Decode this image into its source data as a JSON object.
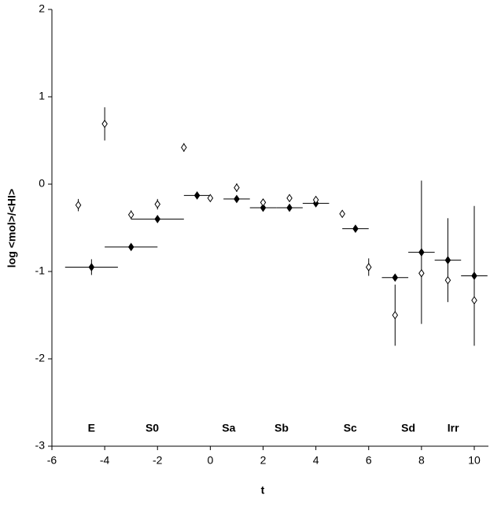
{
  "chart_data": {
    "type": "scatter",
    "x_label": "t",
    "y_label": "log <mol>/<HI>",
    "xlim": [
      -6,
      10
    ],
    "xticks": [
      -6,
      -4,
      -2,
      0,
      2,
      4,
      6,
      8,
      10
    ],
    "ylim": [
      -3,
      2
    ],
    "yticks": [
      -3,
      -2,
      -1,
      0,
      1,
      2
    ],
    "grid": false,
    "series": [
      {
        "marker": "filled",
        "color": "#000000",
        "x": [
          -4.5,
          -3,
          -2,
          -0.5,
          1,
          2,
          3,
          4,
          5.5,
          7,
          8,
          9,
          10
        ],
        "x_low": [
          -5.5,
          -4,
          -3,
          -1,
          0.5,
          1.5,
          2.5,
          3.5,
          5,
          6.5,
          7.5,
          8.5,
          9.5
        ],
        "x_high": [
          -3.5,
          -2,
          -1,
          0,
          1.5,
          2.5,
          3.5,
          4.5,
          6,
          7.5,
          8.5,
          9.5,
          10.5
        ],
        "values": [
          -0.95,
          -0.72,
          -0.4,
          -0.13,
          -0.17,
          -0.27,
          -0.27,
          -0.22,
          -0.51,
          -1.07,
          -0.78,
          -0.87,
          -1.05
        ],
        "errors": [
          0.09,
          null,
          null,
          null,
          null,
          null,
          null,
          null,
          null,
          null,
          0.82,
          0.48,
          0.8
        ]
      },
      {
        "marker": "open",
        "color": "#000000",
        "x": [
          -5,
          -4,
          -3,
          -2,
          -1,
          0,
          1,
          2,
          3,
          4,
          5,
          6,
          7,
          8,
          9,
          10
        ],
        "values": [
          -0.24,
          0.69,
          -0.35,
          -0.23,
          0.42,
          -0.16,
          -0.04,
          -0.21,
          -0.16,
          -0.18,
          -0.34,
          -0.95,
          -1.5,
          -1.02,
          -1.1,
          -1.33
        ],
        "errors": [
          0.07,
          0.19,
          0.05,
          0.06,
          0.05,
          0.02,
          0.05,
          0.03,
          0.03,
          0.03,
          0.02,
          0.1,
          0.35,
          null,
          null,
          null
        ]
      }
    ],
    "annotations": [
      {
        "text": "E",
        "x": -4.5,
        "y": -2.8
      },
      {
        "text": "S0",
        "x": -2.2,
        "y": -2.8
      },
      {
        "text": "Sa",
        "x": 0.7,
        "y": -2.8
      },
      {
        "text": "Sb",
        "x": 2.7,
        "y": -2.8
      },
      {
        "text": "Sc",
        "x": 5.3,
        "y": -2.8
      },
      {
        "text": "Sd",
        "x": 7.5,
        "y": -2.8
      },
      {
        "text": "Irr",
        "x": 9.2,
        "y": -2.8
      }
    ]
  }
}
